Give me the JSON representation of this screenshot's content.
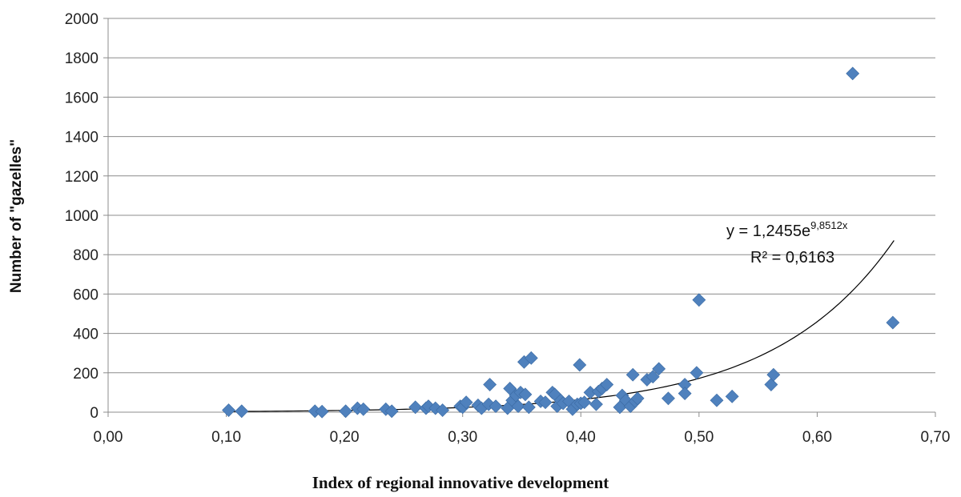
{
  "chart_data": {
    "type": "scatter",
    "title": "",
    "xlabel": "Index of regional innovative development",
    "ylabel": "Number of \"gazelles\"",
    "xlim": [
      0.0,
      0.7
    ],
    "ylim": [
      0,
      2000
    ],
    "x_ticks": [
      0.0,
      0.1,
      0.2,
      0.3,
      0.4,
      0.5,
      0.6,
      0.7
    ],
    "x_tick_labels": [
      "0,00",
      "0,10",
      "0,20",
      "0,30",
      "0,40",
      "0,50",
      "0,60",
      "0,70"
    ],
    "y_ticks": [
      0,
      200,
      400,
      600,
      800,
      1000,
      1200,
      1400,
      1600,
      1800,
      2000
    ],
    "y_tick_labels": [
      "0",
      "200",
      "400",
      "600",
      "800",
      "1000",
      "1200",
      "1400",
      "1600",
      "1800",
      "2000"
    ],
    "grid": "horizontal",
    "marker_color": "#4f81bd",
    "trendline": {
      "type": "exponential",
      "a": 1.2455,
      "b": 9.8512,
      "x_range": [
        0.1,
        0.665
      ],
      "equation_main": "y = 1,2455e",
      "equation_exp": "9,8512x",
      "r2_text": "R² = 0,6163"
    },
    "points": [
      [
        0.102,
        10
      ],
      [
        0.113,
        5
      ],
      [
        0.175,
        5
      ],
      [
        0.181,
        3
      ],
      [
        0.201,
        5
      ],
      [
        0.211,
        20
      ],
      [
        0.216,
        15
      ],
      [
        0.235,
        15
      ],
      [
        0.24,
        5
      ],
      [
        0.26,
        25
      ],
      [
        0.269,
        20
      ],
      [
        0.271,
        30
      ],
      [
        0.277,
        20
      ],
      [
        0.283,
        10
      ],
      [
        0.298,
        30
      ],
      [
        0.3,
        25
      ],
      [
        0.303,
        50
      ],
      [
        0.313,
        35
      ],
      [
        0.316,
        20
      ],
      [
        0.322,
        40
      ],
      [
        0.323,
        140
      ],
      [
        0.328,
        30
      ],
      [
        0.338,
        20
      ],
      [
        0.34,
        120
      ],
      [
        0.342,
        60
      ],
      [
        0.345,
        85
      ],
      [
        0.347,
        30
      ],
      [
        0.349,
        100
      ],
      [
        0.352,
        255
      ],
      [
        0.353,
        90
      ],
      [
        0.356,
        25
      ],
      [
        0.358,
        275
      ],
      [
        0.366,
        55
      ],
      [
        0.37,
        50
      ],
      [
        0.376,
        100
      ],
      [
        0.378,
        90
      ],
      [
        0.38,
        30
      ],
      [
        0.383,
        60
      ],
      [
        0.385,
        45
      ],
      [
        0.39,
        55
      ],
      [
        0.393,
        15
      ],
      [
        0.397,
        40
      ],
      [
        0.399,
        240
      ],
      [
        0.4,
        45
      ],
      [
        0.403,
        50
      ],
      [
        0.408,
        100
      ],
      [
        0.413,
        40
      ],
      [
        0.415,
        105
      ],
      [
        0.418,
        120
      ],
      [
        0.422,
        140
      ],
      [
        0.433,
        25
      ],
      [
        0.435,
        85
      ],
      [
        0.438,
        60
      ],
      [
        0.442,
        30
      ],
      [
        0.444,
        190
      ],
      [
        0.446,
        55
      ],
      [
        0.448,
        70
      ],
      [
        0.456,
        165
      ],
      [
        0.461,
        180
      ],
      [
        0.466,
        220
      ],
      [
        0.474,
        70
      ],
      [
        0.488,
        140
      ],
      [
        0.488,
        95
      ],
      [
        0.498,
        200
      ],
      [
        0.5,
        570
      ],
      [
        0.515,
        60
      ],
      [
        0.528,
        80
      ],
      [
        0.561,
        140
      ],
      [
        0.563,
        190
      ],
      [
        0.63,
        1720
      ],
      [
        0.664,
        455
      ]
    ]
  }
}
